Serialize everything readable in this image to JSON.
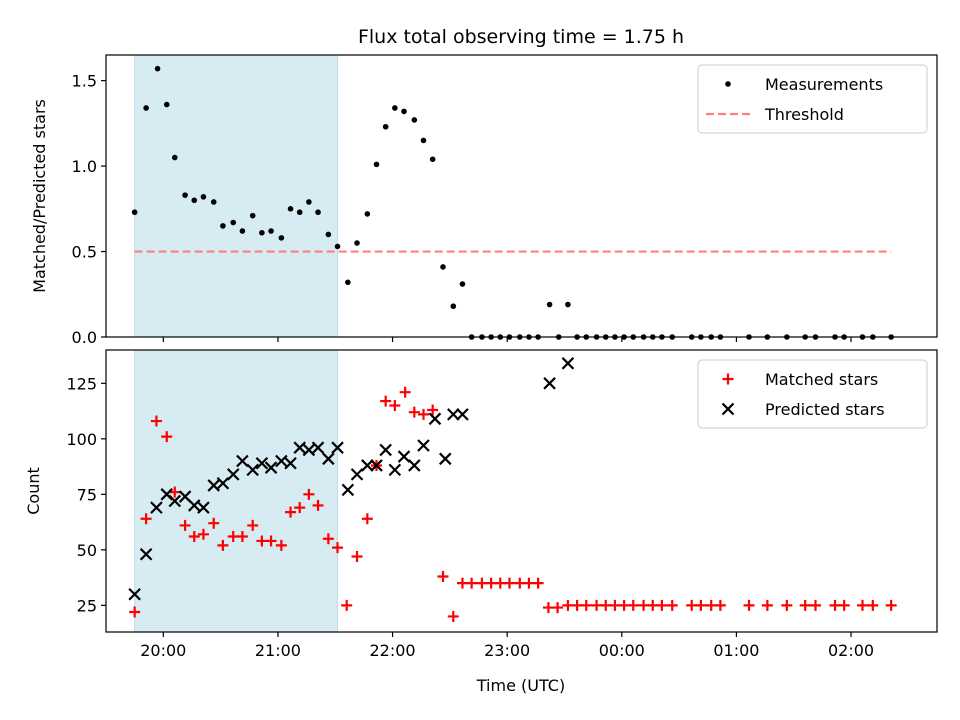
{
  "chart_data": {
    "title": "Flux total observing time = 1.75 h",
    "xlabel": "Time (UTC)",
    "x_unit": "hours of day (UTC); values of 24 and above fall on the following day",
    "xlim": [
      19.5,
      26.75
    ],
    "xticks": [
      {
        "value": 20,
        "label": "20:00"
      },
      {
        "value": 21,
        "label": "21:00"
      },
      {
        "value": 22,
        "label": "22:00"
      },
      {
        "value": 23,
        "label": "23:00"
      },
      {
        "value": 24,
        "label": "00:00"
      },
      {
        "value": 25,
        "label": "01:00"
      },
      {
        "value": 26,
        "label": "02:00"
      }
    ],
    "highlight_span": [
      19.75,
      21.52
    ],
    "highlight_color": "#add8e6",
    "panels": [
      {
        "type": "scatter",
        "ylabel": "Matched/Predicted stars",
        "ylim": [
          0,
          1.65
        ],
        "yticks": [
          0,
          0.5,
          1.0,
          1.5
        ],
        "ytick_labels": [
          "0.0",
          "0.5",
          "1.0",
          "1.5"
        ],
        "legend_position": "top-right",
        "series": [
          {
            "name": "Measurements",
            "marker": "dot",
            "color": "#000000",
            "x": [
              19.75,
              19.85,
              19.95,
              20.03,
              20.1,
              20.19,
              20.27,
              20.35,
              20.44,
              20.52,
              20.61,
              20.69,
              20.78,
              20.86,
              20.94,
              21.03,
              21.11,
              21.19,
              21.27,
              21.35,
              21.44,
              21.52,
              21.61,
              21.69,
              21.78,
              21.86,
              21.94,
              22.02,
              22.1,
              22.19,
              22.27,
              22.35,
              22.44,
              22.53,
              22.61,
              22.69,
              22.78,
              22.86,
              22.94,
              23.02,
              23.11,
              23.19,
              23.27,
              23.37,
              23.45,
              23.53,
              23.61,
              23.69,
              23.78,
              23.86,
              23.94,
              24.02,
              24.1,
              24.19,
              24.27,
              24.35,
              24.44,
              24.61,
              24.69,
              24.78,
              24.86,
              25.11,
              25.27,
              25.44,
              25.6,
              25.69,
              25.86,
              25.94,
              26.1,
              26.19,
              26.35
            ],
            "y": [
              0.73,
              1.34,
              1.57,
              1.36,
              1.05,
              0.83,
              0.8,
              0.82,
              0.79,
              0.65,
              0.67,
              0.62,
              0.71,
              0.61,
              0.62,
              0.58,
              0.75,
              0.73,
              0.79,
              0.73,
              0.6,
              0.53,
              0.32,
              0.55,
              0.72,
              1.01,
              1.23,
              1.34,
              1.32,
              1.27,
              1.15,
              1.04,
              0.41,
              0.18,
              0.31,
              0.0,
              0.0,
              0.0,
              0.0,
              0.0,
              0.0,
              0.0,
              0.0,
              0.19,
              0.0,
              0.19,
              0.0,
              0.0,
              0.0,
              0.0,
              0.0,
              0.0,
              0.0,
              0.0,
              0.0,
              0.0,
              0.0,
              0.0,
              0.0,
              0.0,
              0.0,
              0.0,
              0.0,
              0.0,
              0.0,
              0.0,
              0.0,
              0.0,
              0.0,
              0.0,
              0.0
            ]
          },
          {
            "name": "Threshold",
            "marker": "dashed-line",
            "color": "#ff7f7f",
            "x": [
              19.75,
              26.35
            ],
            "y": [
              0.5,
              0.5
            ]
          }
        ]
      },
      {
        "type": "scatter",
        "ylabel": "Count",
        "ylim": [
          13,
          140
        ],
        "yticks": [
          25,
          50,
          75,
          100,
          125
        ],
        "ytick_labels": [
          "25",
          "50",
          "75",
          "100",
          "125"
        ],
        "legend_position": "top-right",
        "series": [
          {
            "name": "Matched stars",
            "marker": "plus",
            "color": "#ff0000",
            "x": [
              19.75,
              19.85,
              19.94,
              20.03,
              20.1,
              20.19,
              20.27,
              20.35,
              20.44,
              20.52,
              20.61,
              20.69,
              20.78,
              20.86,
              20.94,
              21.03,
              21.11,
              21.19,
              21.27,
              21.35,
              21.44,
              21.52,
              21.6,
              21.69,
              21.78,
              21.86,
              21.94,
              22.02,
              22.11,
              22.19,
              22.27,
              22.35,
              22.44,
              22.53,
              22.61,
              22.69,
              22.78,
              22.86,
              22.94,
              23.02,
              23.11,
              23.19,
              23.27,
              23.36,
              23.44,
              23.53,
              23.61,
              23.69,
              23.78,
              23.86,
              23.94,
              24.02,
              24.1,
              24.19,
              24.27,
              24.35,
              24.44,
              24.61,
              24.69,
              24.78,
              24.86,
              25.11,
              25.27,
              25.44,
              25.6,
              25.69,
              25.86,
              25.94,
              26.1,
              26.19,
              26.35
            ],
            "y": [
              22,
              64,
              108,
              101,
              76,
              61,
              56,
              57,
              62,
              52,
              56,
              56,
              61,
              54,
              54,
              52,
              67,
              69,
              75,
              70,
              55,
              51,
              25,
              47,
              64,
              88,
              117,
              115,
              121,
              112,
              111,
              113,
              38,
              20,
              35,
              35,
              35,
              35,
              35,
              35,
              35,
              35,
              35,
              24,
              24,
              25,
              25,
              25,
              25,
              25,
              25,
              25,
              25,
              25,
              25,
              25,
              25,
              25,
              25,
              25,
              25,
              25,
              25,
              25,
              25,
              25,
              25,
              25,
              25,
              25,
              25
            ]
          },
          {
            "name": "Predicted stars",
            "marker": "x",
            "color": "#000000",
            "x": [
              19.75,
              19.85,
              19.94,
              20.03,
              20.1,
              20.19,
              20.27,
              20.35,
              20.44,
              20.52,
              20.61,
              20.69,
              20.78,
              20.86,
              20.94,
              21.03,
              21.11,
              21.19,
              21.27,
              21.35,
              21.44,
              21.52,
              21.61,
              21.69,
              21.78,
              21.86,
              21.94,
              22.02,
              22.1,
              22.19,
              22.27,
              22.37,
              22.46,
              22.53,
              22.61,
              23.37,
              23.53
            ],
            "y": [
              30,
              48,
              69,
              75,
              72,
              74,
              70,
              69,
              79,
              80,
              84,
              90,
              86,
              89,
              87,
              90,
              89,
              96,
              95,
              96,
              91,
              96,
              77,
              84,
              88,
              88,
              95,
              86,
              92,
              88,
              97,
              109,
              91,
              111,
              111,
              125,
              134
            ]
          }
        ]
      }
    ]
  }
}
